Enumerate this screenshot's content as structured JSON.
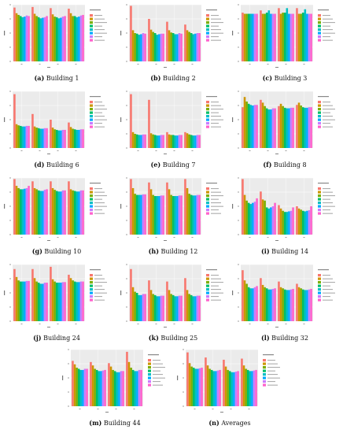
{
  "series_colors": [
    "#f8766d",
    "#cd9600",
    "#7cae00",
    "#00be67",
    "#00bfc4",
    "#00a9ff",
    "#c77cff",
    "#ff61cc"
  ],
  "chart_data": [
    {
      "type": "bar",
      "label": "(a)",
      "name": "Building 1",
      "series_values": [
        [
          0.95,
          0.96,
          0.94,
          0.93
        ],
        [
          0.85,
          0.84,
          0.83,
          0.85
        ],
        [
          0.82,
          0.8,
          0.79,
          0.8
        ],
        [
          0.8,
          0.78,
          0.78,
          0.8
        ],
        [
          0.78,
          0.76,
          0.76,
          0.78
        ],
        [
          0.79,
          0.77,
          0.77,
          0.79
        ],
        [
          0.81,
          0.78,
          0.79,
          0.81
        ],
        [
          0.8,
          0.8,
          0.8,
          0.82
        ]
      ],
      "ylim": [
        0,
        1.0
      ]
    },
    {
      "type": "bar",
      "label": "(b)",
      "name": "Building 2",
      "series_values": [
        [
          0.98,
          0.75,
          0.7,
          0.65
        ],
        [
          0.55,
          0.56,
          0.55,
          0.55
        ],
        [
          0.5,
          0.52,
          0.51,
          0.52
        ],
        [
          0.49,
          0.5,
          0.5,
          0.5
        ],
        [
          0.47,
          0.47,
          0.48,
          0.48
        ],
        [
          0.48,
          0.48,
          0.48,
          0.49
        ],
        [
          0.5,
          0.49,
          0.5,
          0.5
        ],
        [
          0.49,
          0.49,
          0.49,
          0.5
        ]
      ],
      "ylim": [
        0,
        1.0
      ]
    },
    {
      "type": "bar",
      "label": "(c)",
      "name": "Building 3",
      "series_values": [
        [
          0.86,
          0.9,
          0.94,
          0.94
        ],
        [
          0.84,
          0.84,
          0.84,
          0.84
        ],
        [
          0.84,
          0.84,
          0.86,
          0.84
        ],
        [
          0.84,
          0.86,
          0.86,
          0.86
        ],
        [
          0.84,
          0.9,
          0.94,
          0.92
        ],
        [
          0.84,
          0.84,
          0.84,
          0.84
        ],
        [
          0.84,
          0.84,
          0.84,
          0.84
        ],
        [
          0.84,
          0.84,
          0.84,
          0.84
        ]
      ],
      "ylim": [
        0,
        1.0
      ]
    },
    {
      "type": "bar",
      "label": "(d)",
      "name": "Building 6",
      "series_values": [
        [
          0.95,
          0.6,
          0.5,
          0.45
        ],
        [
          0.42,
          0.38,
          0.36,
          0.37
        ],
        [
          0.4,
          0.36,
          0.33,
          0.34
        ],
        [
          0.39,
          0.35,
          0.32,
          0.33
        ],
        [
          0.38,
          0.34,
          0.31,
          0.32
        ],
        [
          0.38,
          0.34,
          0.31,
          0.32
        ],
        [
          0.39,
          0.35,
          0.32,
          0.33
        ],
        [
          0.39,
          0.35,
          0.32,
          0.33
        ]
      ],
      "ylim": [
        0,
        1.0
      ]
    },
    {
      "type": "bar",
      "label": "(e)",
      "name": "Building 7",
      "series_values": [
        [
          0.95,
          0.85,
          0.28,
          0.28
        ],
        [
          0.28,
          0.26,
          0.24,
          0.26
        ],
        [
          0.25,
          0.24,
          0.23,
          0.24
        ],
        [
          0.24,
          0.23,
          0.23,
          0.23
        ],
        [
          0.23,
          0.22,
          0.22,
          0.22
        ],
        [
          0.23,
          0.22,
          0.22,
          0.22
        ],
        [
          0.24,
          0.23,
          0.23,
          0.23
        ],
        [
          0.24,
          0.23,
          0.23,
          0.23
        ]
      ],
      "ylim": [
        0,
        1.0
      ]
    },
    {
      "type": "bar",
      "label": "(f)",
      "name": "Building 8",
      "series_values": [
        [
          0.72,
          0.85,
          0.74,
          0.76
        ],
        [
          0.9,
          0.8,
          0.78,
          0.8
        ],
        [
          0.82,
          0.74,
          0.74,
          0.75
        ],
        [
          0.78,
          0.7,
          0.71,
          0.72
        ],
        [
          0.76,
          0.68,
          0.7,
          0.71
        ],
        [
          0.75,
          0.68,
          0.7,
          0.71
        ],
        [
          0.76,
          0.7,
          0.71,
          0.72
        ],
        [
          0.76,
          0.7,
          0.71,
          0.72
        ]
      ],
      "ylim": [
        0,
        1.0
      ]
    },
    {
      "type": "bar",
      "label": "(g)",
      "name": "Building 10",
      "series_values": [
        [
          0.98,
          0.94,
          0.94,
          0.94
        ],
        [
          0.86,
          0.82,
          0.82,
          0.8
        ],
        [
          0.82,
          0.8,
          0.79,
          0.78
        ],
        [
          0.8,
          0.78,
          0.77,
          0.77
        ],
        [
          0.8,
          0.77,
          0.76,
          0.76
        ],
        [
          0.81,
          0.77,
          0.76,
          0.76
        ],
        [
          0.82,
          0.79,
          0.78,
          0.78
        ],
        [
          0.86,
          0.8,
          0.78,
          0.78
        ]
      ],
      "ylim": [
        0,
        1.0
      ]
    },
    {
      "type": "bar",
      "label": "(h)",
      "name": "Building 12",
      "series_values": [
        [
          0.98,
          0.92,
          0.92,
          0.98
        ],
        [
          0.82,
          0.8,
          0.8,
          0.82
        ],
        [
          0.72,
          0.7,
          0.7,
          0.72
        ],
        [
          0.7,
          0.68,
          0.68,
          0.7
        ],
        [
          0.7,
          0.68,
          0.68,
          0.69
        ],
        [
          0.7,
          0.68,
          0.68,
          0.69
        ],
        [
          0.71,
          0.69,
          0.69,
          0.7
        ],
        [
          0.71,
          0.69,
          0.69,
          0.7
        ]
      ],
      "ylim": [
        0,
        1.0
      ]
    },
    {
      "type": "bar",
      "label": "(i)",
      "name": "Building 14",
      "series_values": [
        [
          0.98,
          0.76,
          0.52,
          0.5
        ],
        [
          0.7,
          0.62,
          0.46,
          0.46
        ],
        [
          0.6,
          0.6,
          0.42,
          0.44
        ],
        [
          0.56,
          0.48,
          0.4,
          0.42
        ],
        [
          0.54,
          0.46,
          0.4,
          0.41
        ],
        [
          0.56,
          0.48,
          0.41,
          0.42
        ],
        [
          0.58,
          0.5,
          0.42,
          0.43
        ],
        [
          0.64,
          0.56,
          0.48,
          0.5
        ]
      ],
      "ylim": [
        0,
        1.0
      ]
    },
    {
      "type": "bar",
      "label": "(j)",
      "name": "Building 24",
      "series_values": [
        [
          0.92,
          0.92,
          0.96,
          0.82
        ],
        [
          0.78,
          0.76,
          0.74,
          0.76
        ],
        [
          0.72,
          0.7,
          0.7,
          0.72
        ],
        [
          0.7,
          0.68,
          0.68,
          0.7
        ],
        [
          0.7,
          0.66,
          0.68,
          0.69
        ],
        [
          0.7,
          0.66,
          0.68,
          0.69
        ],
        [
          0.71,
          0.68,
          0.69,
          0.7
        ],
        [
          0.71,
          0.68,
          0.69,
          0.7
        ]
      ],
      "ylim": [
        0,
        1.0
      ]
    },
    {
      "type": "bar",
      "label": "(k)",
      "name": "Building 25",
      "series_values": [
        [
          0.92,
          0.72,
          0.7,
          0.76
        ],
        [
          0.6,
          0.55,
          0.55,
          0.55
        ],
        [
          0.52,
          0.48,
          0.48,
          0.48
        ],
        [
          0.5,
          0.46,
          0.46,
          0.46
        ],
        [
          0.46,
          0.44,
          0.44,
          0.44
        ],
        [
          0.46,
          0.44,
          0.44,
          0.44
        ],
        [
          0.48,
          0.45,
          0.45,
          0.45
        ],
        [
          0.48,
          0.45,
          0.45,
          0.45
        ]
      ],
      "ylim": [
        0,
        1.0
      ]
    },
    {
      "type": "bar",
      "label": "(l)",
      "name": "Building 32",
      "series_values": [
        [
          0.9,
          0.76,
          0.7,
          0.66
        ],
        [
          0.72,
          0.64,
          0.6,
          0.6
        ],
        [
          0.66,
          0.6,
          0.58,
          0.58
        ],
        [
          0.6,
          0.58,
          0.56,
          0.56
        ],
        [
          0.58,
          0.56,
          0.55,
          0.55
        ],
        [
          0.58,
          0.56,
          0.55,
          0.55
        ],
        [
          0.6,
          0.57,
          0.56,
          0.56
        ],
        [
          0.62,
          0.58,
          0.57,
          0.57
        ]
      ],
      "ylim": [
        0,
        1.0
      ]
    },
    {
      "type": "bar",
      "label": "(m)",
      "name": "Building 44",
      "series_values": [
        [
          0.8,
          0.78,
          0.76,
          0.96
        ],
        [
          0.74,
          0.72,
          0.7,
          0.78
        ],
        [
          0.68,
          0.66,
          0.64,
          0.68
        ],
        [
          0.66,
          0.64,
          0.62,
          0.64
        ],
        [
          0.64,
          0.62,
          0.6,
          0.62
        ],
        [
          0.64,
          0.62,
          0.6,
          0.62
        ],
        [
          0.66,
          0.63,
          0.62,
          0.64
        ],
        [
          0.66,
          0.64,
          0.62,
          0.64
        ]
      ],
      "ylim": [
        0,
        1.0
      ]
    },
    {
      "type": "bar",
      "label": "(n)",
      "name": "Averages",
      "series_values": [
        [
          0.95,
          0.86,
          0.82,
          0.84
        ],
        [
          0.76,
          0.72,
          0.7,
          0.72
        ],
        [
          0.7,
          0.66,
          0.64,
          0.66
        ],
        [
          0.68,
          0.64,
          0.62,
          0.64
        ],
        [
          0.66,
          0.62,
          0.6,
          0.62
        ],
        [
          0.66,
          0.62,
          0.6,
          0.62
        ],
        [
          0.67,
          0.63,
          0.61,
          0.63
        ],
        [
          0.68,
          0.64,
          0.62,
          0.64
        ]
      ],
      "ylim": [
        0,
        1.0
      ]
    }
  ]
}
